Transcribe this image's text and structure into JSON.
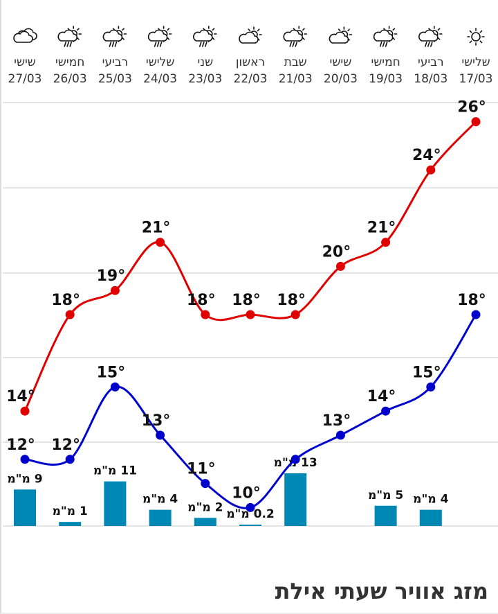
{
  "chart_data": {
    "type": "line",
    "title": "מזג אוויר שעתי אילת",
    "days": [
      {
        "day": "שלישי",
        "date": "17/03",
        "icon": "sun-icon",
        "high": 26,
        "low": 18,
        "rain": null
      },
      {
        "day": "רביעי",
        "date": "18/03",
        "icon": "rain-partly-sunny-icon",
        "high": 24,
        "low": 15,
        "rain": 4
      },
      {
        "day": "חמישי",
        "date": "19/03",
        "icon": "rain-partly-sunny-icon",
        "high": 21,
        "low": 14,
        "rain": 5
      },
      {
        "day": "שישי",
        "date": "20/03",
        "icon": "partly-cloudy-icon",
        "high": 20,
        "low": 13,
        "rain": null
      },
      {
        "day": "שבת",
        "date": "21/03",
        "icon": "rain-partly-sunny-icon",
        "high": 18,
        "low": 12,
        "low_label_hidden": true,
        "rain": 13
      },
      {
        "day": "ראשון",
        "date": "22/03",
        "icon": "partly-cloudy-icon",
        "high": 18,
        "low": 10,
        "rain": 0.2
      },
      {
        "day": "שני",
        "date": "23/03",
        "icon": "rain-partly-sunny-icon",
        "high": 18,
        "low": 11,
        "rain": 2
      },
      {
        "day": "שלישי",
        "date": "24/03",
        "icon": "rain-partly-sunny-icon",
        "high": 21,
        "low": 13,
        "rain": 4
      },
      {
        "day": "רביעי",
        "date": "25/03",
        "icon": "rain-partly-sunny-icon",
        "high": 19,
        "low": 15,
        "rain": 11
      },
      {
        "day": "חמישי",
        "date": "26/03",
        "icon": "rain-partly-sunny-icon",
        "high": 18,
        "low": 12,
        "rain": 1
      },
      {
        "day": "שישי",
        "date": "27/03",
        "icon": "cloudy-icon",
        "high": 14,
        "low": 12,
        "rain": 9
      }
    ],
    "rain_unit": "מ\"מ",
    "degree_symbol": "°",
    "colors": {
      "high": "#e00000",
      "low": "#0000cc",
      "rain": "#0088b5",
      "grid": "#e4e4e4"
    },
    "grid": true
  }
}
